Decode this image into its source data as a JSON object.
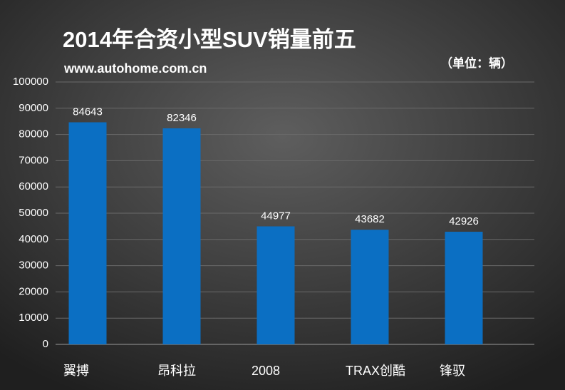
{
  "chart_data": {
    "type": "bar",
    "title": "2014年合资小型SUV销量前五",
    "subtitle": "www.autohome.com.cn",
    "unit_note": "（单位：辆）",
    "categories": [
      "翼搏",
      "昂科拉",
      "2008",
      "TRAX创酷",
      "锋驭"
    ],
    "values": [
      84643,
      82346,
      44977,
      43682,
      42926
    ],
    "color": "#0b6fc3",
    "ylim": [
      0,
      100000
    ],
    "yticks": [
      0,
      10000,
      20000,
      30000,
      40000,
      50000,
      60000,
      70000,
      80000,
      90000,
      100000
    ],
    "grid": true
  }
}
